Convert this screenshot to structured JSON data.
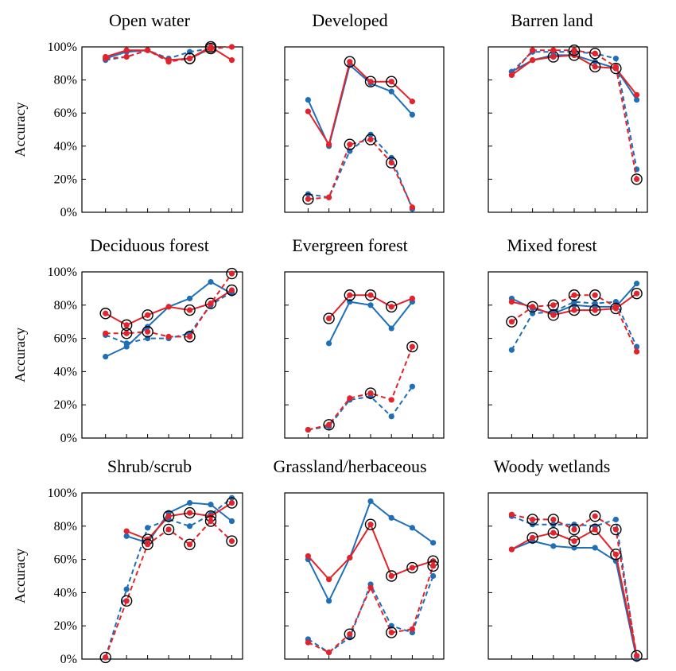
{
  "colors": {
    "blue": "#1f6fb8",
    "red": "#e3222b",
    "frame": "#000000"
  },
  "y_axis_label": "Accuracy",
  "y_ticks": [
    "0%",
    "20%",
    "40%",
    "60%",
    "80%",
    "100%"
  ],
  "chart_data": [
    {
      "type": "line",
      "title": "Open water",
      "ylim": [
        0,
        100
      ],
      "n_x": 7,
      "series": [
        {
          "color": "blue",
          "style": "solid",
          "values": [
            93,
            97,
            98,
            92,
            93,
            99,
            null
          ]
        },
        {
          "color": "blue",
          "style": "dashed",
          "values": [
            92,
            94,
            98,
            93,
            97,
            99,
            null
          ]
        },
        {
          "color": "red",
          "style": "solid",
          "values": [
            94,
            98,
            98,
            92,
            93,
            100,
            92
          ],
          "circled": [
            4,
            5
          ]
        },
        {
          "color": "red",
          "style": "dashed",
          "values": [
            93,
            94,
            98,
            91,
            93,
            99,
            100
          ],
          "circled": [
            4,
            5
          ]
        }
      ]
    },
    {
      "type": "line",
      "title": "Developed",
      "ylim": [
        0,
        100
      ],
      "n_x": 7,
      "series": [
        {
          "color": "blue",
          "style": "solid",
          "values": [
            68,
            40,
            89,
            78,
            73,
            59,
            null
          ]
        },
        {
          "color": "blue",
          "style": "dashed",
          "values": [
            11,
            9,
            37,
            47,
            33,
            2,
            null
          ]
        },
        {
          "color": "red",
          "style": "solid",
          "values": [
            61,
            41,
            91,
            79,
            79,
            67,
            null
          ],
          "circled": [
            2,
            3,
            4
          ]
        },
        {
          "color": "red",
          "style": "dashed",
          "values": [
            8,
            9,
            41,
            44,
            30,
            3,
            null
          ],
          "circled": [
            0,
            2,
            3,
            4
          ]
        }
      ]
    },
    {
      "type": "line",
      "title": "Barren land",
      "ylim": [
        0,
        100
      ],
      "n_x": 7,
      "series": [
        {
          "color": "blue",
          "style": "solid",
          "values": [
            85,
            92,
            95,
            95,
            91,
            87,
            68
          ]
        },
        {
          "color": "blue",
          "style": "dashed",
          "values": [
            85,
            97,
            97,
            97,
            96,
            93,
            26
          ]
        },
        {
          "color": "red",
          "style": "solid",
          "values": [
            83,
            92,
            94,
            95,
            88,
            87,
            71
          ],
          "circled": [
            2,
            3,
            4,
            5
          ]
        },
        {
          "color": "red",
          "style": "dashed",
          "values": [
            83,
            98,
            98,
            98,
            96,
            88,
            20
          ],
          "circled": [
            3,
            4,
            6
          ]
        }
      ]
    },
    {
      "type": "line",
      "title": "Deciduous forest",
      "ylim": [
        0,
        100
      ],
      "n_x": 7,
      "series": [
        {
          "color": "blue",
          "style": "solid",
          "values": [
            49,
            55,
            67,
            79,
            84,
            94,
            87
          ]
        },
        {
          "color": "blue",
          "style": "dashed",
          "values": [
            62,
            57,
            60,
            60,
            63,
            80,
            88
          ]
        },
        {
          "color": "red",
          "style": "solid",
          "values": [
            75,
            68,
            74,
            79,
            77,
            81,
            89
          ],
          "circled": [
            0,
            1,
            2,
            4,
            5,
            6
          ]
        },
        {
          "color": "red",
          "style": "dashed",
          "values": [
            63,
            63,
            64,
            61,
            61,
            81,
            99
          ],
          "circled": [
            1,
            2,
            4,
            6
          ]
        }
      ]
    },
    {
      "type": "line",
      "title": "Evergreen forest",
      "ylim": [
        0,
        100
      ],
      "n_x": 7,
      "series": [
        {
          "color": "blue",
          "style": "solid",
          "values": [
            null,
            57,
            82,
            80,
            66,
            82,
            null
          ]
        },
        {
          "color": "blue",
          "style": "dashed",
          "values": [
            5,
            7,
            23,
            25,
            13,
            31,
            null
          ]
        },
        {
          "color": "red",
          "style": "solid",
          "values": [
            null,
            72,
            86,
            86,
            79,
            84,
            null
          ],
          "circled": [
            1,
            2,
            3,
            4
          ]
        },
        {
          "color": "red",
          "style": "dashed",
          "values": [
            5,
            8,
            24,
            27,
            23,
            55,
            null
          ],
          "circled": [
            1,
            3,
            5
          ]
        }
      ]
    },
    {
      "type": "line",
      "title": "Mixed forest",
      "ylim": [
        0,
        100
      ],
      "n_x": 7,
      "series": [
        {
          "color": "blue",
          "style": "solid",
          "values": [
            84,
            78,
            75,
            80,
            79,
            79,
            93
          ]
        },
        {
          "color": "blue",
          "style": "dashed",
          "values": [
            53,
            75,
            76,
            82,
            81,
            82,
            55
          ]
        },
        {
          "color": "red",
          "style": "solid",
          "values": [
            82,
            79,
            74,
            77,
            77,
            78,
            87
          ],
          "circled": [
            1,
            2,
            3,
            4,
            5,
            6
          ]
        },
        {
          "color": "red",
          "style": "dashed",
          "values": [
            70,
            79,
            80,
            86,
            86,
            79,
            52
          ],
          "circled": [
            0,
            2,
            3,
            4
          ]
        }
      ]
    },
    {
      "type": "line",
      "title": "Shrub/scrub",
      "ylim": [
        0,
        100
      ],
      "n_x": 7,
      "series": [
        {
          "color": "blue",
          "style": "solid",
          "values": [
            null,
            74,
            70,
            88,
            94,
            93,
            83
          ]
        },
        {
          "color": "blue",
          "style": "dashed",
          "values": [
            1,
            42,
            79,
            84,
            80,
            87,
            97
          ]
        },
        {
          "color": "red",
          "style": "solid",
          "values": [
            null,
            77,
            72,
            86,
            88,
            86,
            94
          ],
          "circled": [
            2,
            3,
            4,
            5,
            6
          ]
        },
        {
          "color": "red",
          "style": "dashed",
          "values": [
            1,
            35,
            69,
            78,
            69,
            83,
            71
          ],
          "circled": [
            0,
            1,
            2,
            3,
            4,
            5,
            6
          ]
        }
      ]
    },
    {
      "type": "line",
      "title": "Grassland/herbaceous",
      "ylim": [
        0,
        100
      ],
      "n_x": 7,
      "series": [
        {
          "color": "blue",
          "style": "solid",
          "values": [
            60,
            35,
            61,
            95,
            85,
            79,
            70
          ]
        },
        {
          "color": "blue",
          "style": "dashed",
          "values": [
            12,
            4,
            13,
            45,
            20,
            16,
            50
          ]
        },
        {
          "color": "red",
          "style": "solid",
          "values": [
            62,
            48,
            61,
            81,
            50,
            55,
            59
          ],
          "circled": [
            3,
            4,
            5,
            6
          ]
        },
        {
          "color": "red",
          "style": "dashed",
          "values": [
            10,
            4,
            15,
            43,
            16,
            18,
            56
          ],
          "circled": [
            2,
            4,
            6
          ]
        }
      ]
    },
    {
      "type": "line",
      "title": "Woody wetlands",
      "ylim": [
        0,
        100
      ],
      "n_x": 7,
      "series": [
        {
          "color": "blue",
          "style": "solid",
          "values": [
            66,
            71,
            68,
            67,
            67,
            59,
            0
          ]
        },
        {
          "color": "blue",
          "style": "dashed",
          "values": [
            86,
            81,
            81,
            81,
            80,
            84,
            0
          ]
        },
        {
          "color": "red",
          "style": "solid",
          "values": [
            66,
            73,
            76,
            71,
            78,
            63,
            2
          ],
          "circled": [
            1,
            2,
            3,
            4,
            5,
            6
          ]
        },
        {
          "color": "red",
          "style": "dashed",
          "values": [
            87,
            84,
            84,
            78,
            86,
            78,
            2
          ],
          "circled": [
            1,
            2,
            3,
            4,
            5
          ]
        }
      ]
    }
  ]
}
